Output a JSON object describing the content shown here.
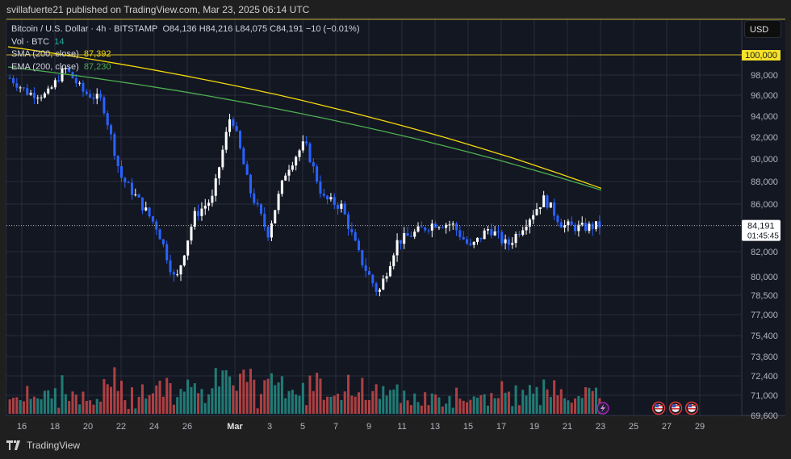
{
  "header": {
    "publish_line": "svillafuerte21 published on TradingView.com, Mar 23, 2025 06:14 UTC"
  },
  "legend": {
    "symbol": "Bitcoin / U.S. Dollar · 4h · BITSTAMP",
    "ohlc": "O84,136  H84,216  L84,075  C84,191  −10 (−0.01%)",
    "vol_label": "Vol · BTC",
    "vol_value": "14",
    "sma_label": "SMA (200, close)",
    "sma_value": "87,392",
    "ema_label": "EMA (200, close)",
    "ema_value": "87,230"
  },
  "price_axis": {
    "currency": "USD",
    "highlight_label": "100,000",
    "current_price": "84,191",
    "countdown": "01:45:45"
  },
  "footer": {
    "brand": "TradingView"
  },
  "colors": {
    "background": "#131722",
    "grid": "#2a2e39",
    "up_candle": "#ffffff",
    "down_candle": "#2962ff",
    "vol_up": "#26a69a",
    "vol_down": "#ef5350",
    "sma": "#f5d90a",
    "ema": "#4caf50"
  },
  "chart_data": {
    "type": "candlestick",
    "title": "Bitcoin / U.S. Dollar · 4h · BITSTAMP",
    "xlabel": "",
    "ylabel": "USD",
    "x_ticks": [
      "16",
      "18",
      "20",
      "22",
      "24",
      "26",
      "Mar",
      "3",
      "5",
      "7",
      "9",
      "11",
      "13",
      "15",
      "17",
      "19",
      "21",
      "23",
      "25",
      "27",
      "29"
    ],
    "y_ticks": [
      "100,000",
      "98,000",
      "96,000",
      "94,000",
      "92,000",
      "90,000",
      "88,000",
      "86,000",
      "84,191",
      "82,000",
      "80,000",
      "78,500",
      "77,000",
      "75,400",
      "73,800",
      "72,400",
      "71,000",
      "69,600"
    ],
    "ylim": [
      69600,
      101500
    ],
    "grid": true,
    "last": {
      "open": 84136,
      "high": 84216,
      "low": 84075,
      "close": 84191,
      "change": -10,
      "change_pct": -0.01
    },
    "horizontal_line": 100000,
    "approx_close_path": [
      {
        "date": "Feb 15",
        "close": 97700
      },
      {
        "date": "Feb 17",
        "close": 96200
      },
      {
        "date": "Feb 19",
        "close": 96000
      },
      {
        "date": "Feb 21",
        "close": 98700
      },
      {
        "date": "Feb 22",
        "close": 96300
      },
      {
        "date": "Feb 24",
        "close": 95500
      },
      {
        "date": "Feb 25",
        "close": 88500
      },
      {
        "date": "Feb 26",
        "close": 86300
      },
      {
        "date": "Feb 27",
        "close": 84000
      },
      {
        "date": "Feb 28",
        "close": 79500
      },
      {
        "date": "Mar 1",
        "close": 85000
      },
      {
        "date": "Mar 2",
        "close": 86500
      },
      {
        "date": "Mar 3",
        "close": 94300
      },
      {
        "date": "Mar 4",
        "close": 87300
      },
      {
        "date": "Mar 5",
        "close": 83500
      },
      {
        "date": "Mar 6",
        "close": 89000
      },
      {
        "date": "Mar 7",
        "close": 91500
      },
      {
        "date": "Mar 8",
        "close": 86500
      },
      {
        "date": "Mar 9",
        "close": 85800
      },
      {
        "date": "Mar 10",
        "close": 81500
      },
      {
        "date": "Mar 11",
        "close": 78600
      },
      {
        "date": "Mar 12",
        "close": 82800
      },
      {
        "date": "Mar 13",
        "close": 83600
      },
      {
        "date": "Mar 14",
        "close": 84400
      },
      {
        "date": "Mar 15",
        "close": 84300
      },
      {
        "date": "Mar 16",
        "close": 82300
      },
      {
        "date": "Mar 17",
        "close": 84000
      },
      {
        "date": "Mar 18",
        "close": 82500
      },
      {
        "date": "Mar 19",
        "close": 84500
      },
      {
        "date": "Mar 20",
        "close": 86500
      },
      {
        "date": "Mar 21",
        "close": 84200
      },
      {
        "date": "Mar 22",
        "close": 84000
      },
      {
        "date": "Mar 23",
        "close": 84191
      }
    ],
    "series": [
      {
        "name": "SMA (200, close)",
        "last": 87392,
        "color": "#f5d90a"
      },
      {
        "name": "EMA (200, close)",
        "last": 87230,
        "color": "#4caf50"
      },
      {
        "name": "Vol · BTC",
        "last": 14
      }
    ],
    "event_markers": [
      {
        "date": "Mar 23",
        "icon": "lightning"
      },
      {
        "date": "Mar 27",
        "icon": "us-flag"
      },
      {
        "date": "Mar 28",
        "icon": "us-flag"
      },
      {
        "date": "Mar 29",
        "icon": "us-flag"
      }
    ]
  }
}
